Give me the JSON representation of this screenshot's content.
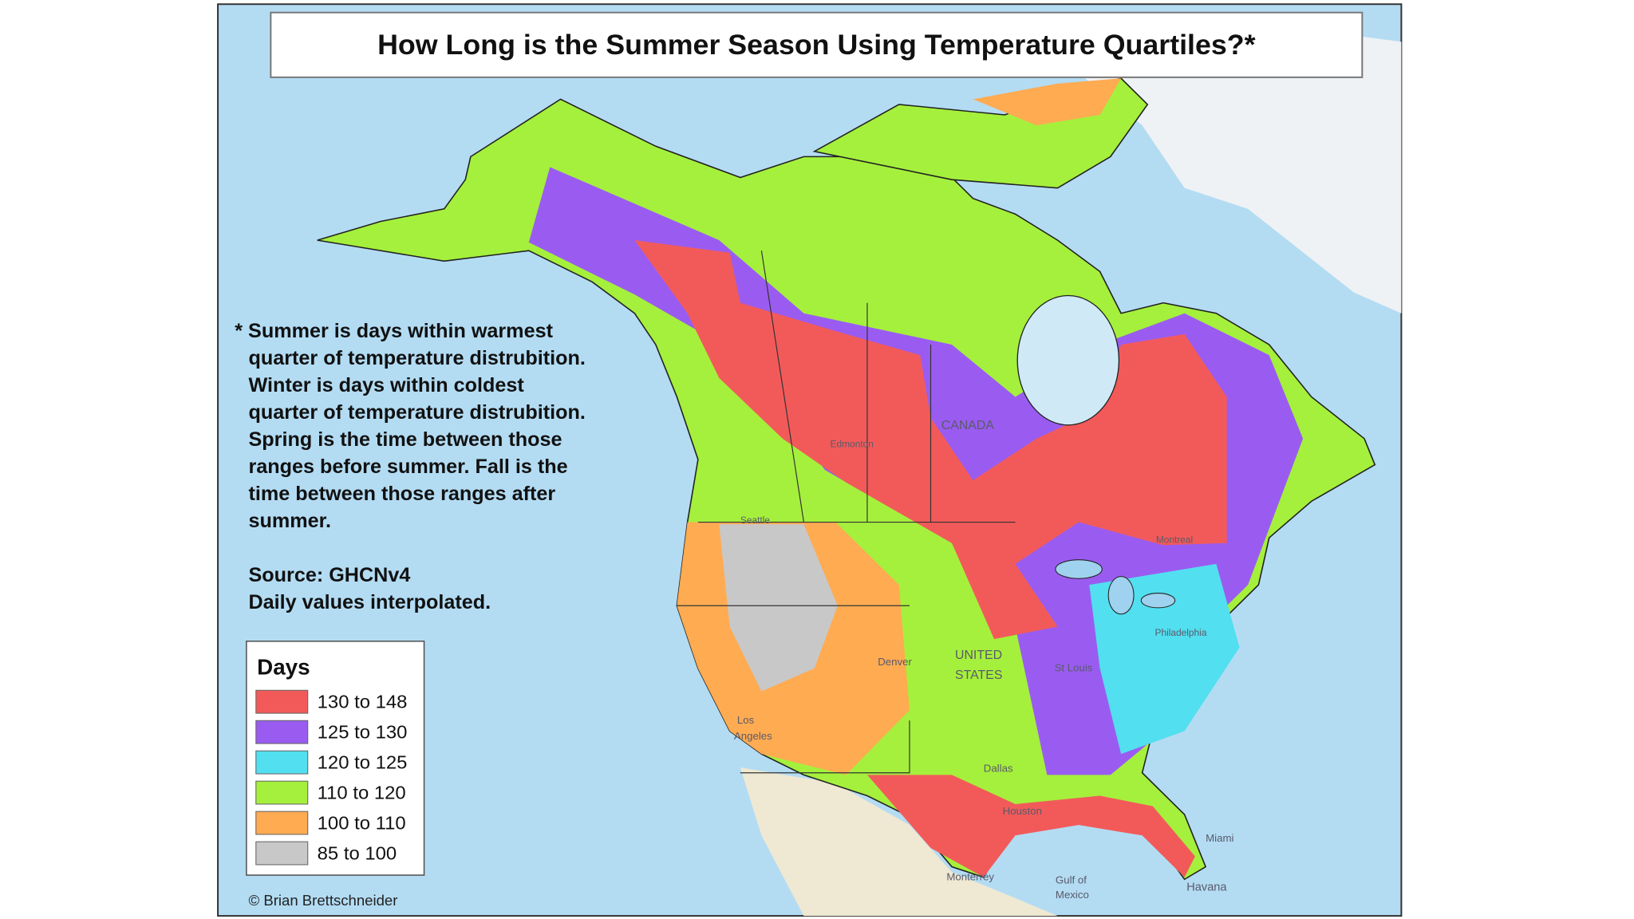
{
  "header": {
    "title": "How Long is the Summer Season Using Temperature Quartiles?*"
  },
  "note": {
    "lines": [
      "* Summer is days within warmest",
      "quarter of temperature distrubition.",
      "Winter is days within coldest",
      "quarter of temperature distrubition.",
      "Spring is the time between those",
      "ranges before summer. Fall is the",
      "time between those ranges after",
      "summer."
    ],
    "source": [
      "Source: GHCNv4",
      "Daily values interpolated."
    ]
  },
  "legend": {
    "title": "Days",
    "items": [
      {
        "label": "130 to 148",
        "color": "#f25a5a"
      },
      {
        "label": "125 to 130",
        "color": "#9a5cf0"
      },
      {
        "label": "120 to 125",
        "color": "#52dff0"
      },
      {
        "label": "110 to 120",
        "color": "#a5f03c"
      },
      {
        "label": "100 to 110",
        "color": "#ffab52"
      },
      {
        "label": "85 to 100",
        "color": "#c8c8c8"
      }
    ]
  },
  "places": [
    "CANADA",
    "UNITED",
    "STATES",
    "Edmonton",
    "Seattle",
    "Denver",
    "Dallas",
    "Houston",
    "Miami",
    "Havana",
    "Monterrey",
    "Gulf of",
    "Mexico",
    "Los",
    "Angeles",
    "St Louis",
    "Philadelphia",
    "Montreal"
  ],
  "credit": "© Brian Brettschneider"
}
